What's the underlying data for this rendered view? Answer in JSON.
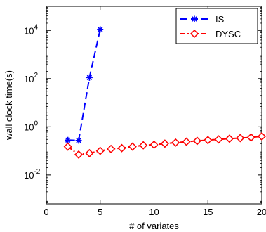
{
  "chart_data": {
    "type": "line",
    "title": "",
    "xlabel": "# of variates",
    "ylabel": "wall clock time(s)",
    "xlim": [
      0,
      20
    ],
    "ylim_log10": [
      -3.2,
      5.0
    ],
    "y_scale": "log",
    "grid": false,
    "legend_position": "top-right",
    "x_ticks": [
      0,
      5,
      10,
      15,
      20
    ],
    "x_tick_labels": [
      "0",
      "5",
      "10",
      "15",
      "20"
    ],
    "y_ticks_exponent": [
      -2,
      0,
      2,
      4
    ],
    "y_tick_labels": [
      {
        "base": "10",
        "exp": "-2"
      },
      {
        "base": "10",
        "exp": "0"
      },
      {
        "base": "10",
        "exp": "2"
      },
      {
        "base": "10",
        "exp": "4"
      }
    ],
    "series": [
      {
        "name": "IS",
        "color": "#0000ff",
        "marker": "asterisk",
        "line_style": "dashed",
        "x": [
          2,
          3,
          4,
          5
        ],
        "y": [
          0.28,
          0.27,
          110,
          11000
        ]
      },
      {
        "name": "DYSC",
        "color": "#ff0000",
        "marker": "diamond",
        "line_style": "dash-dot",
        "x": [
          2,
          3,
          4,
          5,
          6,
          7,
          8,
          9,
          10,
          11,
          12,
          13,
          14,
          15,
          16,
          17,
          18,
          19,
          20
        ],
        "y": [
          0.15,
          0.07,
          0.08,
          0.1,
          0.12,
          0.13,
          0.15,
          0.17,
          0.18,
          0.2,
          0.22,
          0.24,
          0.26,
          0.28,
          0.3,
          0.32,
          0.34,
          0.36,
          0.4
        ]
      }
    ]
  }
}
